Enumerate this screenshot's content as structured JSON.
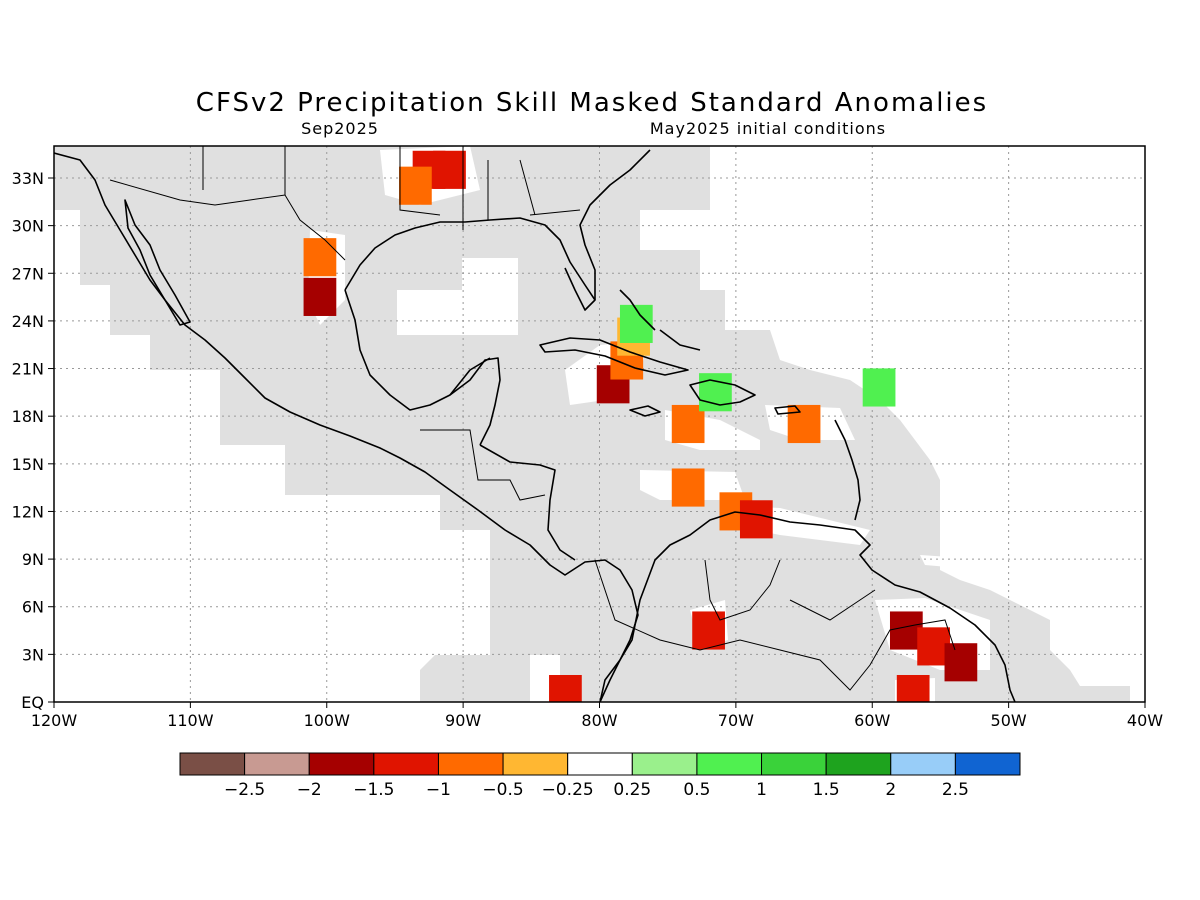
{
  "title": "CFSv2 Precipitation Skill Masked Standard Anomalies",
  "subtitle_left": "Sep2025",
  "subtitle_right": "May2025 initial conditions",
  "map": {
    "lon_range": [
      -120,
      -40
    ],
    "lat_range": [
      0,
      35
    ],
    "x_ticks": [
      "120W",
      "110W",
      "100W",
      "90W",
      "80W",
      "70W",
      "60W",
      "50W",
      "40W"
    ],
    "y_ticks": [
      "EQ",
      "3N",
      "6N",
      "9N",
      "12N",
      "15N",
      "18N",
      "21N",
      "24N",
      "27N",
      "30N",
      "33N"
    ],
    "grid": "dotted",
    "masked_color": "#e0e0e0",
    "anomaly_cells": [
      {
        "lon": -92.5,
        "lat": 33.5,
        "value": -1.2
      },
      {
        "lon": -91.0,
        "lat": 33.5,
        "value": -1.2
      },
      {
        "lon": -93.5,
        "lat": 32.5,
        "value": -0.7
      },
      {
        "lon": -100.5,
        "lat": 28.0,
        "value": -0.6
      },
      {
        "lon": -100.5,
        "lat": 25.5,
        "value": -1.7
      },
      {
        "lon": -79.0,
        "lat": 20.0,
        "value": -1.8
      },
      {
        "lon": -78.0,
        "lat": 21.5,
        "value": -0.7
      },
      {
        "lon": -77.5,
        "lat": 23.0,
        "value": -0.4
      },
      {
        "lon": -77.3,
        "lat": 23.8,
        "value": 0.6
      },
      {
        "lon": -73.5,
        "lat": 17.5,
        "value": -0.6
      },
      {
        "lon": -71.5,
        "lat": 19.5,
        "value": 0.6
      },
      {
        "lon": -65.0,
        "lat": 17.5,
        "value": -0.6
      },
      {
        "lon": -73.5,
        "lat": 13.5,
        "value": -0.8
      },
      {
        "lon": -70.0,
        "lat": 12.0,
        "value": -0.8
      },
      {
        "lon": -68.5,
        "lat": 11.5,
        "value": -1.2
      },
      {
        "lon": -72.0,
        "lat": 4.5,
        "value": -1.2
      },
      {
        "lon": -57.5,
        "lat": 4.5,
        "value": -1.7
      },
      {
        "lon": -55.5,
        "lat": 3.5,
        "value": -1.2
      },
      {
        "lon": -53.5,
        "lat": 2.5,
        "value": -1.6
      },
      {
        "lon": -57.0,
        "lat": 0.5,
        "value": -1.1
      },
      {
        "lon": -82.5,
        "lat": 0.5,
        "value": -1.2
      },
      {
        "lon": -59.5,
        "lat": 19.8,
        "value": 0.6
      }
    ]
  },
  "colorbar": {
    "colors": [
      "#7a4f46",
      "#c89a92",
      "#a50000",
      "#e01400",
      "#ff6a00",
      "#ffb732",
      "#ffffff",
      "#9af08c",
      "#50f050",
      "#3ad23a",
      "#1ea31e",
      "#98cdf8",
      "#1064d2"
    ],
    "labels": [
      "−2.5",
      "−2",
      "−1.5",
      "−1",
      "−0.5",
      "−0.25",
      "0.25",
      "0.5",
      "1",
      "1.5",
      "2",
      "2.5"
    ]
  }
}
